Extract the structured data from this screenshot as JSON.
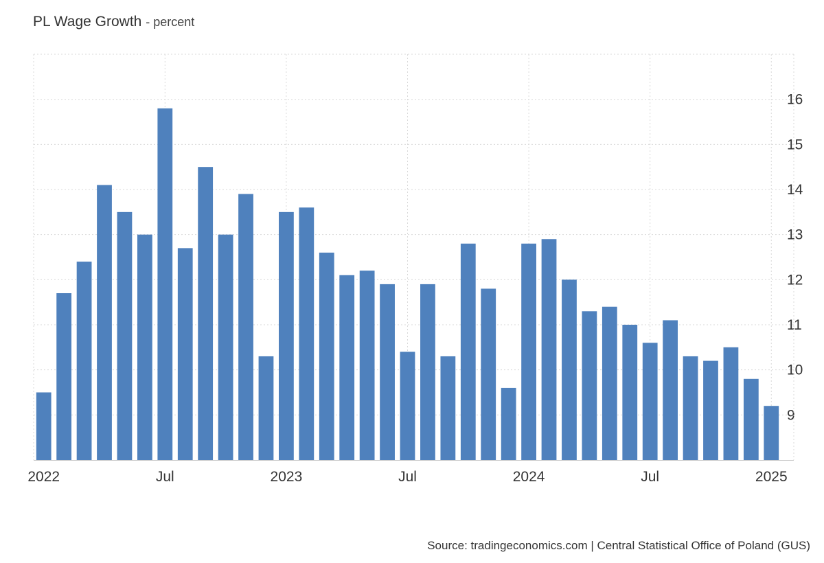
{
  "chart_title": "PL Wage Growth",
  "chart_unit": "percent",
  "source": "Source: tradingeconomics.com | Central Statistical Office of Poland (GUS)",
  "bar_color": "#4f81bd",
  "chart_data": {
    "type": "bar",
    "title": "PL Wage Growth",
    "ylabel": "percent",
    "xlabel": "",
    "grid": true,
    "ylim": [
      8,
      17
    ],
    "y_ticks": [
      9,
      10,
      11,
      12,
      13,
      14,
      15,
      16
    ],
    "categories": [
      "2022-01",
      "2022-02",
      "2022-03",
      "2022-04",
      "2022-05",
      "2022-06",
      "2022-07",
      "2022-08",
      "2022-09",
      "2022-10",
      "2022-11",
      "2022-12",
      "2023-01",
      "2023-02",
      "2023-03",
      "2023-04",
      "2023-05",
      "2023-06",
      "2023-07",
      "2023-08",
      "2023-09",
      "2023-10",
      "2023-11",
      "2023-12",
      "2024-01",
      "2024-02",
      "2024-03",
      "2024-04",
      "2024-05",
      "2024-06",
      "2024-07",
      "2024-08",
      "2024-09",
      "2024-10",
      "2024-11",
      "2024-12",
      "2025-01"
    ],
    "values": [
      9.5,
      11.7,
      12.4,
      14.1,
      13.5,
      13.0,
      15.8,
      12.7,
      14.5,
      13.0,
      13.9,
      10.3,
      13.5,
      13.6,
      12.6,
      12.1,
      12.2,
      11.9,
      10.4,
      11.9,
      10.3,
      12.8,
      11.8,
      9.6,
      12.8,
      12.9,
      12.0,
      11.3,
      11.4,
      11.0,
      10.6,
      11.1,
      10.3,
      10.2,
      10.5,
      9.8,
      9.2
    ],
    "x_tick_labels": [
      {
        "label": "2022",
        "index": 0
      },
      {
        "label": "Jul",
        "index": 6
      },
      {
        "label": "2023",
        "index": 12
      },
      {
        "label": "Jul",
        "index": 18
      },
      {
        "label": "2024",
        "index": 24
      },
      {
        "label": "Jul",
        "index": 30
      },
      {
        "label": "2025",
        "index": 36
      }
    ]
  }
}
